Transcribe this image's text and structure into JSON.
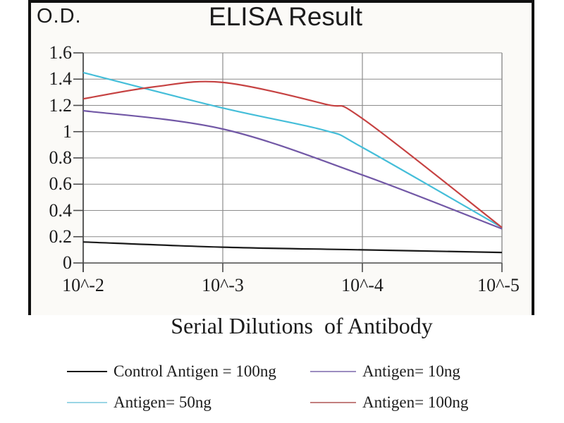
{
  "chart_data": {
    "type": "line",
    "title": "ELISA Result",
    "ylabel": "O.D.",
    "xlabel": "Serial Dilutions  of Antibody",
    "x_ticklabels": [
      "10^-2",
      "10^-3",
      "10^-4",
      "10^-5"
    ],
    "y_ticklabels": [
      "1.6",
      "1.4",
      "1.2",
      "1",
      "0.8",
      "0.6",
      "0.4",
      "0.2",
      "0"
    ],
    "y_ticks": [
      1.6,
      1.4,
      1.2,
      1.0,
      0.8,
      0.6,
      0.4,
      0.2,
      0
    ],
    "ylim": [
      0,
      1.6
    ],
    "xscale": "serial-dilution-log",
    "grid": true,
    "legend_position": "bottom",
    "colors": {
      "grid": "#8c8c8c",
      "axis": "#4a4a4a",
      "frame": "#101010",
      "plot_background": "#ffffff"
    },
    "series": [
      {
        "name": "Control Antigen = 100ng",
        "color": "#1a1a1a",
        "swatch_color": "#1a1a1a",
        "values": [
          0.16,
          0.12,
          0.1,
          0.08
        ],
        "draw_points": [
          [
            0,
            0.16
          ],
          [
            1,
            0.12
          ],
          [
            2,
            0.1
          ],
          [
            3,
            0.08
          ]
        ]
      },
      {
        "name": "Antigen= 10ng",
        "color": "#7258a6",
        "swatch_color": "#9c8dc0",
        "values": [
          1.16,
          1.02,
          0.67,
          0.26
        ],
        "draw_points": [
          [
            0,
            1.16
          ],
          [
            1,
            1.02
          ],
          [
            2,
            0.67
          ],
          [
            3,
            0.26
          ]
        ]
      },
      {
        "name": "Antigen= 50ng",
        "color": "#45bed9",
        "swatch_color": "#9ad6e5",
        "values": [
          1.45,
          1.18,
          0.88,
          0.27
        ],
        "draw_points": [
          [
            0,
            1.45
          ],
          [
            1,
            1.18
          ],
          [
            1.73,
            1.01
          ],
          [
            2,
            0.88
          ],
          [
            3,
            0.27
          ]
        ]
      },
      {
        "name": "Antigen= 100ng",
        "color": "#c64242",
        "swatch_color": "#c37f7e",
        "values": [
          1.25,
          1.37,
          1.1,
          0.27
        ],
        "peak": {
          "near_x": "10^-3",
          "value": 1.38
        },
        "draw_points": [
          [
            0,
            1.25
          ],
          [
            0.5,
            1.34
          ],
          [
            1,
            1.375
          ],
          [
            1.73,
            1.21
          ],
          [
            2,
            1.1
          ],
          [
            3,
            0.27
          ]
        ]
      }
    ]
  }
}
